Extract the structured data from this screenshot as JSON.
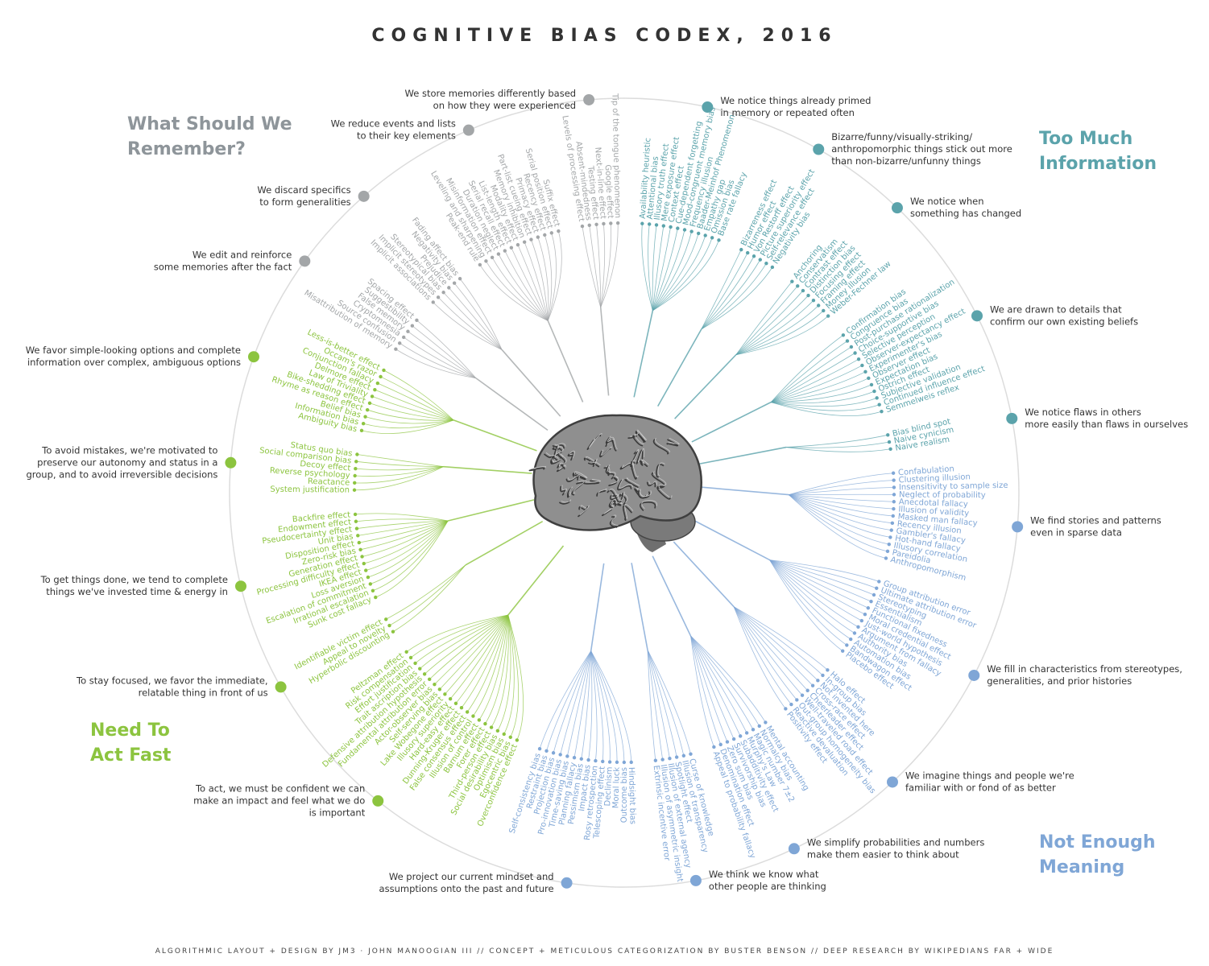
{
  "title": "COGNITIVE BIAS CODEX, 2016",
  "footer": "ALGORITHMIC LAYOUT + DESIGN BY JM3 · JOHN MANOOGIAN III // CONCEPT + METICULOUS CATEGORIZATION BY BUSTER BENSON // DEEP RESEARCH BY WIKIPEDIANS FAR + WIDE",
  "quadrants": [
    {
      "heading": [
        "Too Much",
        "Information"
      ],
      "color": "#5ba3ab",
      "groups": [
        {
          "label": [
            "We notice things already primed",
            "in memory or repeated often"
          ],
          "biases": [
            "Availability heuristic",
            "Attentional bias",
            "Illusory truth effect",
            "Mere exposure effect",
            "Context effect",
            "Cue-dependent forgetting",
            "Mood-congruent memory bias",
            "Frequency illusion",
            "Baader-Meinhof Phenomenon",
            "Empathy gap",
            "Omission bias",
            "Base rate fallacy"
          ]
        },
        {
          "label": [
            "Bizarre/funny/visually-striking/",
            "anthropomorphic things stick out more",
            "than non-bizarre/unfunny things"
          ],
          "biases": [
            "Bizarreness effect",
            "Humor effect",
            "Von Restorff effect",
            "Picture superiority effect",
            "Self-relevance effect",
            "Negativity bias"
          ]
        },
        {
          "label": [
            "We notice when",
            "something has changed"
          ],
          "biases": [
            "Anchoring",
            "Conservatism",
            "Contrast effect",
            "Distinction bias",
            "Focusing effect",
            "Framing effect",
            "Money illusion",
            "Weber-Fechner law"
          ]
        },
        {
          "label": [
            "We are drawn to details that",
            "confirm our own existing beliefs"
          ],
          "biases": [
            "Confirmation bias",
            "Congruence bias",
            "Post-purchase rationalization",
            "Choice-supportive bias",
            "Selective perception",
            "Observer-expectancy effect",
            "Experimenter's bias",
            "Observer effect",
            "Expectation bias",
            "Ostrich effect",
            "Subjective validation",
            "Continued influence effect",
            "Semmelweis reflex"
          ]
        },
        {
          "label": [
            "We notice flaws in others",
            "more easily than flaws in ourselves"
          ],
          "biases": [
            "Bias blind spot",
            "Naive cynicism",
            "Naive realism"
          ]
        }
      ]
    },
    {
      "heading": [
        "Not Enough",
        "Meaning"
      ],
      "color": "#7fa6d6",
      "groups": [
        {
          "label": [
            "We find stories and patterns",
            "even in sparse data"
          ],
          "biases": [
            "Confabulation",
            "Clustering illusion",
            "Insensitivity to sample size",
            "Neglect of probability",
            "Anecdotal fallacy",
            "Illusion of validity",
            "Masked man fallacy",
            "Recency illusion",
            "Gambler's fallacy",
            "Hot-hand fallacy",
            "Illusory correlation",
            "Pareidolia",
            "Anthropomorphism"
          ]
        },
        {
          "label": [
            "We fill in characteristics from stereotypes,",
            "generalities, and prior histories"
          ],
          "biases": [
            "Group attribution error",
            "Ultimate attribution error",
            "Stereotyping",
            "Essentialism",
            "Functional fixedness",
            "Moral credential effect",
            "Just-world hypothesis",
            "Argument from fallacy",
            "Authority bias",
            "Automation bias",
            "Bandwagon effect",
            "Placebo effect"
          ]
        },
        {
          "label": [
            "We imagine things and people we're",
            "familiar with or fond of as better"
          ],
          "biases": [
            "Halo effect",
            "In-group bias",
            "Not invented here",
            "Cross-race effect",
            "Cheerleader effect",
            "Well-traveled road effect",
            "Out-group homogeneity bias",
            "Reactive devaluation",
            "Positivity effect"
          ]
        },
        {
          "label": [
            "We simplify probabilities and numbers",
            "make them easier to think about"
          ],
          "biases": [
            "Mental accounting",
            "Normalcy bias",
            "Magic number 7±2",
            "Murphy's Law",
            "Subadditivity effect",
            "Survivorship bias",
            "Zero sum bias",
            "Denomination effect",
            "Appeal to probability fallacy"
          ]
        },
        {
          "label": [
            "We think we know what",
            "other people are thinking"
          ],
          "biases": [
            "Curse of knowledge",
            "Illusion of transparency",
            "Spotlight effect",
            "Illusion of external agency",
            "Illusion of asymmetric insight",
            "Extrinsic incentive error"
          ]
        },
        {
          "label": [
            "We project our current mindset and",
            "assumptions onto the past and future"
          ],
          "biases": [
            "Hindsight bias",
            "Outcome bias",
            "Moral luck",
            "Declinism",
            "Telescoping effect",
            "Rosy retrospection",
            "Impact bias",
            "Pessimism bias",
            "Planning fallacy",
            "Time-saving bias",
            "Pro-innovation bias",
            "Projection bias",
            "Restraint bias",
            "Self-consistency bias"
          ]
        }
      ]
    },
    {
      "heading": [
        "Need To",
        "Act Fast"
      ],
      "color": "#8cc43f",
      "groups": [
        {
          "label": [
            "To act, we must be confident we can",
            "make an impact and feel what we do",
            "is important"
          ],
          "biases": [
            "Overconfidence effect",
            "Egocentric bias",
            "Optimism bias",
            "Social desirability bias",
            "Third-person effect",
            "Forer effect",
            "Barnum effect",
            "Illusion of control",
            "False consensus effect",
            "Dunning-Kruger effect",
            "Hard-easy effect",
            "Illusory superiority",
            "Lake Wobegone effect",
            "Self-serving bias",
            "Actor-observer bias",
            "Fundamental attribution error",
            "Defensive attribution hypothesis",
            "Trait ascription bias",
            "Effort justification",
            "Risk compensation",
            "Peltzman effect"
          ]
        },
        {
          "label": [
            "To stay focused, we favor the immediate,",
            "relatable thing in front of us"
          ],
          "biases": [
            "Hyperbolic discounting",
            "Appeal to novelty",
            "Identifiable victim effect"
          ]
        },
        {
          "label": [
            "To get things done, we tend to complete",
            "things we've invested time & energy in"
          ],
          "biases": [
            "Sunk cost fallacy",
            "Irrational escalation",
            "Escalation of commitment",
            "Loss aversion",
            "IKEA effect",
            "Processing difficulty effect",
            "Generation effect",
            "Zero-risk bias",
            "Disposition effect",
            "Unit bias",
            "Pseudocertainty effect",
            "Endowment effect",
            "Backfire effect"
          ]
        },
        {
          "label": [
            "To avoid mistakes, we're motivated to",
            "preserve our autonomy and status in a",
            "group, and to avoid irreversible decisions"
          ],
          "biases": [
            "System justification",
            "Reactance",
            "Reverse psychology",
            "Decoy effect",
            "Social comparison bias",
            "Status quo bias"
          ]
        },
        {
          "label": [
            "We favor simple-looking options and complete",
            "information over complex, ambiguous options"
          ],
          "biases": [
            "Ambiguity bias",
            "Information bias",
            "Belief bias",
            "Rhyme as reason effect",
            "Bike-shedding effect",
            "Law of Triviality",
            "Delmore effect",
            "Conjunction fallacy",
            "Occam's razor",
            "Less-is-better effect"
          ]
        }
      ]
    },
    {
      "heading": [
        "What Should We",
        "Remember?"
      ],
      "color": "#a3a6a8",
      "groups": [
        {
          "label": [
            "We edit and reinforce",
            "some memories after the fact"
          ],
          "biases": [
            "Misattribution of memory",
            "Source confusion",
            "Cryptomnesia",
            "False memory",
            "Suggestibility",
            "Spacing effect"
          ]
        },
        {
          "label": [
            "We discard specifics",
            "to form generalities"
          ],
          "biases": [
            "Implicit associations",
            "Implicit stereotypes",
            "Stereotypical bias",
            "Prejudice",
            "Negativity bias",
            "Fading affect bias"
          ]
        },
        {
          "label": [
            "We reduce events and lists",
            "to their key elements"
          ],
          "biases": [
            "Peak-end rule",
            "Leveling and sharpening",
            "Misinformation effect",
            "Duration neglect",
            "Serial recall effect",
            "List-length effect",
            "Modality effect",
            "Memory inhibition",
            "Part-list cueing effect",
            "Primacy effect",
            "Recency effect",
            "Serial position effect",
            "Suffix effect"
          ]
        },
        {
          "label": [
            "We store memories differently based",
            "on how they were experienced"
          ],
          "biases": [
            "Levels of processing effect",
            "Absent-mindedness",
            "Testing effect",
            "Next-in-line effect",
            "Google effect",
            "Tip of the tongue phenomenon"
          ]
        }
      ]
    }
  ]
}
